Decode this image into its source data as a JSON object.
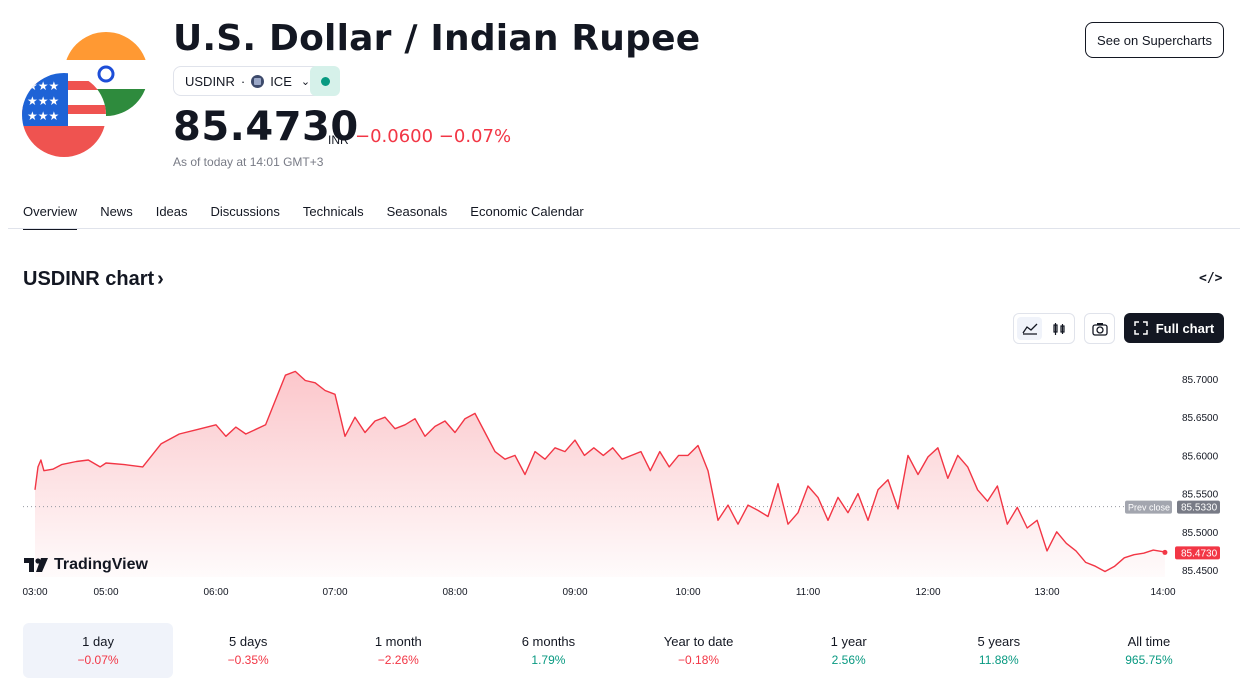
{
  "header": {
    "title": "U.S. Dollar / Indian Rupee",
    "symbol": "USDINR",
    "exchange": "ICE",
    "price": "85.4730",
    "currency": "INR",
    "change": "−0.0600 −0.07%",
    "as_of": "As of today at 14:01 GMT+3",
    "supercharts_label": "See on Supercharts",
    "market_status": "open",
    "flag_top": "india-flag",
    "flag_bottom": "usa-flag"
  },
  "tabs": [
    {
      "label": "Overview",
      "active": true
    },
    {
      "label": "News"
    },
    {
      "label": "Ideas"
    },
    {
      "label": "Discussions"
    },
    {
      "label": "Technicals"
    },
    {
      "label": "Seasonals"
    },
    {
      "label": "Economic Calendar"
    }
  ],
  "chart_section": {
    "title": "USDINR chart",
    "full_chart_label": "Full chart",
    "watermark": "TradingView",
    "chart_type_icons": [
      "area-chart-icon",
      "candles-icon"
    ],
    "snapshot_icon": "camera-icon",
    "embed_icon": "code-embed-icon"
  },
  "chart_data": {
    "type": "area",
    "title": "",
    "x_ticks": [
      "03:00",
      "05:00",
      "06:00",
      "07:00",
      "08:00",
      "09:00",
      "10:00",
      "11:00",
      "12:00",
      "13:00",
      "14:00"
    ],
    "y_ticks": [
      "85.7000",
      "85.6500",
      "85.6000",
      "85.5500",
      "85.5000",
      "85.4500"
    ],
    "ylim": [
      85.435,
      85.72
    ],
    "prev_close_label": "Prev close",
    "prev_close": "85.5330",
    "last_value": "85.4730",
    "line_color": "#f23645",
    "series": [
      {
        "points": [
          [
            "03:00",
            85.555
          ],
          [
            "03:05",
            85.585
          ],
          [
            "03:10",
            85.594
          ],
          [
            "03:15",
            85.58
          ],
          [
            "03:30",
            85.582
          ],
          [
            "03:45",
            85.588
          ],
          [
            "04:10",
            85.592
          ],
          [
            "04:30",
            85.594
          ],
          [
            "04:50",
            85.585
          ],
          [
            "05:00",
            85.59
          ],
          [
            "05:10",
            85.588
          ],
          [
            "05:20",
            85.585
          ],
          [
            "05:30",
            85.615
          ],
          [
            "05:40",
            85.628
          ],
          [
            "05:50",
            85.634
          ],
          [
            "06:00",
            85.64
          ],
          [
            "06:05",
            85.625
          ],
          [
            "06:10",
            85.637
          ],
          [
            "06:15",
            85.628
          ],
          [
            "06:25",
            85.64
          ],
          [
            "06:35",
            85.705
          ],
          [
            "06:40",
            85.71
          ],
          [
            "06:45",
            85.698
          ],
          [
            "06:50",
            85.695
          ],
          [
            "06:55",
            85.685
          ],
          [
            "07:00",
            85.68
          ],
          [
            "07:05",
            85.625
          ],
          [
            "07:10",
            85.65
          ],
          [
            "07:15",
            85.63
          ],
          [
            "07:20",
            85.645
          ],
          [
            "07:25",
            85.65
          ],
          [
            "07:30",
            85.635
          ],
          [
            "07:35",
            85.64
          ],
          [
            "07:40",
            85.648
          ],
          [
            "07:45",
            85.625
          ],
          [
            "07:50",
            85.638
          ],
          [
            "07:55",
            85.645
          ],
          [
            "08:00",
            85.63
          ],
          [
            "08:05",
            85.648
          ],
          [
            "08:10",
            85.655
          ],
          [
            "08:15",
            85.63
          ],
          [
            "08:20",
            85.605
          ],
          [
            "08:25",
            85.595
          ],
          [
            "08:30",
            85.6
          ],
          [
            "08:35",
            85.575
          ],
          [
            "08:40",
            85.605
          ],
          [
            "08:45",
            85.595
          ],
          [
            "08:50",
            85.61
          ],
          [
            "08:55",
            85.605
          ],
          [
            "09:00",
            85.62
          ],
          [
            "09:05",
            85.6
          ],
          [
            "09:10",
            85.61
          ],
          [
            "09:15",
            85.6
          ],
          [
            "09:20",
            85.61
          ],
          [
            "09:25",
            85.595
          ],
          [
            "09:30",
            85.6
          ],
          [
            "09:35",
            85.605
          ],
          [
            "09:40",
            85.58
          ],
          [
            "09:45",
            85.605
          ],
          [
            "09:50",
            85.585
          ],
          [
            "09:55",
            85.6
          ],
          [
            "10:00",
            85.6
          ],
          [
            "10:05",
            85.613
          ],
          [
            "10:10",
            85.58
          ],
          [
            "10:15",
            85.515
          ],
          [
            "10:20",
            85.535
          ],
          [
            "10:25",
            85.51
          ],
          [
            "10:30",
            85.535
          ],
          [
            "10:35",
            85.528
          ],
          [
            "10:40",
            85.52
          ],
          [
            "10:45",
            85.563
          ],
          [
            "10:50",
            85.51
          ],
          [
            "10:55",
            85.525
          ],
          [
            "11:00",
            85.56
          ],
          [
            "11:05",
            85.545
          ],
          [
            "11:10",
            85.515
          ],
          [
            "11:15",
            85.545
          ],
          [
            "11:20",
            85.525
          ],
          [
            "11:25",
            85.55
          ],
          [
            "11:30",
            85.515
          ],
          [
            "11:35",
            85.555
          ],
          [
            "11:40",
            85.568
          ],
          [
            "11:45",
            85.53
          ],
          [
            "11:50",
            85.6
          ],
          [
            "11:55",
            85.575
          ],
          [
            "12:00",
            85.598
          ],
          [
            "12:05",
            85.61
          ],
          [
            "12:10",
            85.57
          ],
          [
            "12:15",
            85.6
          ],
          [
            "12:20",
            85.585
          ],
          [
            "12:25",
            85.555
          ],
          [
            "12:30",
            85.54
          ],
          [
            "12:35",
            85.56
          ],
          [
            "12:40",
            85.51
          ],
          [
            "12:45",
            85.532
          ],
          [
            "12:50",
            85.505
          ],
          [
            "12:55",
            85.515
          ],
          [
            "13:00",
            85.475
          ],
          [
            "13:05",
            85.5
          ],
          [
            "13:10",
            85.485
          ],
          [
            "13:15",
            85.475
          ],
          [
            "13:20",
            85.46
          ],
          [
            "13:25",
            85.455
          ],
          [
            "13:30",
            85.448
          ],
          [
            "13:35",
            85.455
          ],
          [
            "13:40",
            85.466
          ],
          [
            "13:45",
            85.47
          ],
          [
            "13:50",
            85.472
          ],
          [
            "13:55",
            85.476
          ],
          [
            "14:00",
            85.474
          ],
          [
            "14:01",
            85.473
          ]
        ]
      }
    ]
  },
  "periods": [
    {
      "label": "1 day",
      "value": "−0.07%",
      "trend": "neg",
      "active": true
    },
    {
      "label": "5 days",
      "value": "−0.35%",
      "trend": "neg"
    },
    {
      "label": "1 month",
      "value": "−2.26%",
      "trend": "neg"
    },
    {
      "label": "6 months",
      "value": "1.79%",
      "trend": "pos"
    },
    {
      "label": "Year to date",
      "value": "−0.18%",
      "trend": "neg"
    },
    {
      "label": "1 year",
      "value": "2.56%",
      "trend": "pos"
    },
    {
      "label": "5 years",
      "value": "11.88%",
      "trend": "pos"
    },
    {
      "label": "All time",
      "value": "965.75%",
      "trend": "pos"
    }
  ]
}
